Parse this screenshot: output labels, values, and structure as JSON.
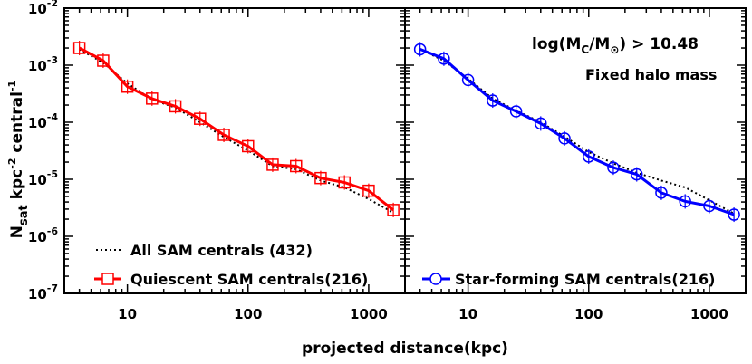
{
  "chart_data": {
    "type": "line",
    "y_scale": "log",
    "x_scale": "log",
    "xlabel": "projected distance(kpc)",
    "ylabel_parts": {
      "main": "N",
      "sub": "sat",
      "unit": "kpc",
      "unit_exp": "-2",
      "per": "central",
      "per_exp": "-1"
    },
    "xlim": [
      3,
      2000
    ],
    "ylim": [
      1e-07,
      0.01
    ],
    "y_ticks": [
      {
        "base": "10",
        "exp": "-2"
      },
      {
        "base": "10",
        "exp": "-3"
      },
      {
        "base": "10",
        "exp": "-4"
      },
      {
        "base": "10",
        "exp": "-5"
      },
      {
        "base": "10",
        "exp": "-6"
      },
      {
        "base": "10",
        "exp": "-7"
      }
    ],
    "x_ticks": [
      "10",
      "100",
      "1000"
    ],
    "panels": [
      {
        "series": [
          {
            "name": "All SAM centrals (432)",
            "style": "dotted",
            "color": "#000000",
            "x": [
              4,
              6.3,
              10,
              16,
              25,
              40,
              63,
              100,
              160,
              250,
              400,
              630,
              1000,
              1600
            ],
            "y": [
              0.0019,
              0.0011,
              0.00048,
              0.00025,
              0.00018,
              0.0001,
              5.5e-05,
              3.2e-05,
              1.7e-05,
              1.5e-05,
              9.5e-06,
              7.2e-06,
              4.5e-06,
              2.6e-06
            ]
          },
          {
            "name": "Quiescent SAM centrals(216)",
            "style": "solid",
            "marker": "square",
            "color": "#ff0000",
            "x": [
              4,
              6.3,
              10,
              16,
              25,
              40,
              63,
              100,
              160,
              250,
              400,
              630,
              1000,
              1600
            ],
            "y": [
              0.002,
              0.0012,
              0.00042,
              0.00026,
              0.00019,
              0.000115,
              6e-05,
              3.8e-05,
              1.8e-05,
              1.7e-05,
              1.05e-05,
              8.8e-06,
              6.3e-06,
              2.9e-06
            ]
          }
        ]
      },
      {
        "annotations": [
          {
            "text_parts": {
              "prefix": "log(M",
              "sub1": "C",
              "mid": "/M",
              "sub2": "⊙",
              "suffix": ") > 10.48"
            }
          },
          {
            "text": "Fixed halo mass"
          }
        ],
        "series": [
          {
            "name": "",
            "style": "dotted",
            "color": "#000000",
            "x": [
              4,
              6.3,
              10,
              16,
              25,
              40,
              63,
              100,
              160,
              250,
              400,
              630,
              1000,
              1600
            ],
            "y": [
              0.0019,
              0.0012,
              0.00058,
              0.00026,
              0.00016,
              0.0001,
              5.6e-05,
              3e-05,
              1.9e-05,
              1.3e-05,
              9.5e-06,
              7.2e-06,
              4.3e-06,
              2.5e-06
            ]
          },
          {
            "name": "Star-forming SAM centrals(216)",
            "style": "solid",
            "marker": "circle",
            "color": "#0000ff",
            "x": [
              4,
              6.3,
              10,
              16,
              25,
              40,
              63,
              100,
              160,
              250,
              400,
              630,
              1000,
              1600
            ],
            "y": [
              0.0019,
              0.0013,
              0.00055,
              0.00024,
              0.000155,
              9.5e-05,
              5.2e-05,
              2.5e-05,
              1.6e-05,
              1.22e-05,
              5.8e-06,
              4.1e-06,
              3.4e-06,
              2.4e-06
            ]
          }
        ]
      }
    ]
  }
}
